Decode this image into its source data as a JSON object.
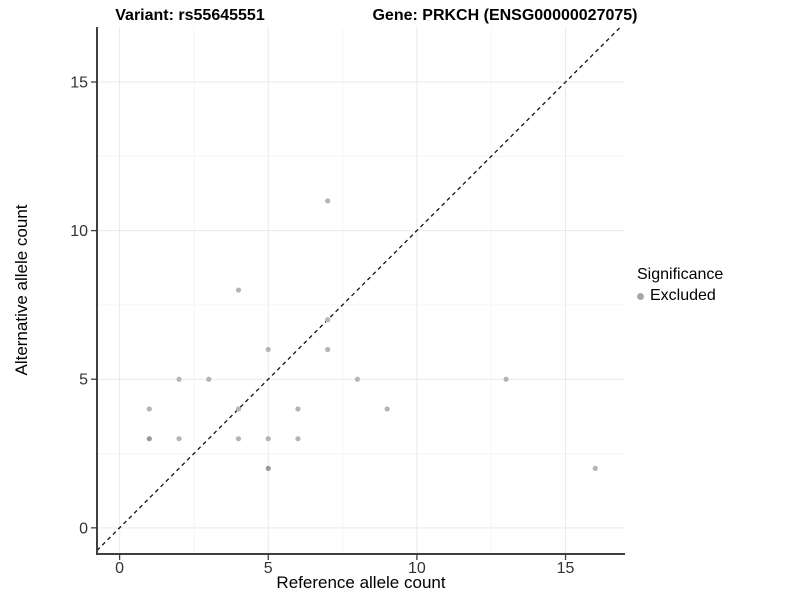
{
  "figure": {
    "title_left": "Variant: rs55645551",
    "title_right": "Gene: PRKCH (ENSG00000027075)"
  },
  "chart_data": {
    "type": "scatter",
    "title": "Variant: rs55645551 — Gene: PRKCH (ENSG00000027075)",
    "xlabel": "Reference allele count",
    "ylabel": "Alternative allele count",
    "xlim": [
      -0.76,
      17.0
    ],
    "ylim": [
      -0.88,
      16.85
    ],
    "x_major_ticks": [
      0,
      5,
      10,
      15
    ],
    "x_tick_labels": [
      "0",
      "5",
      "10",
      "15"
    ],
    "y_major_ticks": [
      0,
      5,
      10,
      15
    ],
    "y_tick_labels": [
      "0",
      "5",
      "10",
      "15"
    ],
    "x_minor_gridlines": [
      2.5,
      7.5,
      12.5
    ],
    "y_minor_gridlines": [
      2.5,
      7.5,
      12.5
    ],
    "grid": true,
    "identity_line": {
      "slope": 1,
      "intercept": 0,
      "style": "dashed",
      "color": "#111111"
    },
    "series": [
      {
        "name": "Excluded",
        "points": [
          {
            "x": 1,
            "y": 3,
            "n": 2
          },
          {
            "x": 1,
            "y": 4,
            "n": 1
          },
          {
            "x": 2,
            "y": 3,
            "n": 1
          },
          {
            "x": 2,
            "y": 5,
            "n": 1
          },
          {
            "x": 3,
            "y": 5,
            "n": 1
          },
          {
            "x": 4,
            "y": 3,
            "n": 1
          },
          {
            "x": 4,
            "y": 4,
            "n": 1
          },
          {
            "x": 4,
            "y": 8,
            "n": 1
          },
          {
            "x": 5,
            "y": 2,
            "n": 2
          },
          {
            "x": 5,
            "y": 3,
            "n": 1
          },
          {
            "x": 5,
            "y": 6,
            "n": 1
          },
          {
            "x": 6,
            "y": 3,
            "n": 1
          },
          {
            "x": 6,
            "y": 4,
            "n": 1
          },
          {
            "x": 7,
            "y": 6,
            "n": 1
          },
          {
            "x": 7,
            "y": 7,
            "n": 1
          },
          {
            "x": 7,
            "y": 11,
            "n": 1
          },
          {
            "x": 8,
            "y": 5,
            "n": 1
          },
          {
            "x": 9,
            "y": 4,
            "n": 1
          },
          {
            "x": 13,
            "y": 5,
            "n": 1
          },
          {
            "x": 16,
            "y": 2,
            "n": 1
          }
        ]
      }
    ],
    "legend": {
      "title": "Significance",
      "position": "right",
      "items": [
        {
          "label": "Excluded",
          "color": "#a8a8a8"
        }
      ]
    },
    "style": {
      "point_color": "#b5b5b5",
      "point_color_overplotted": "#989898",
      "grid_major_color": "#e9e9e9",
      "grid_minor_color": "#f5f5f5",
      "axis_line_color": "#3f3f3f",
      "tick_label_color": "#333333",
      "background": "#ffffff"
    }
  }
}
